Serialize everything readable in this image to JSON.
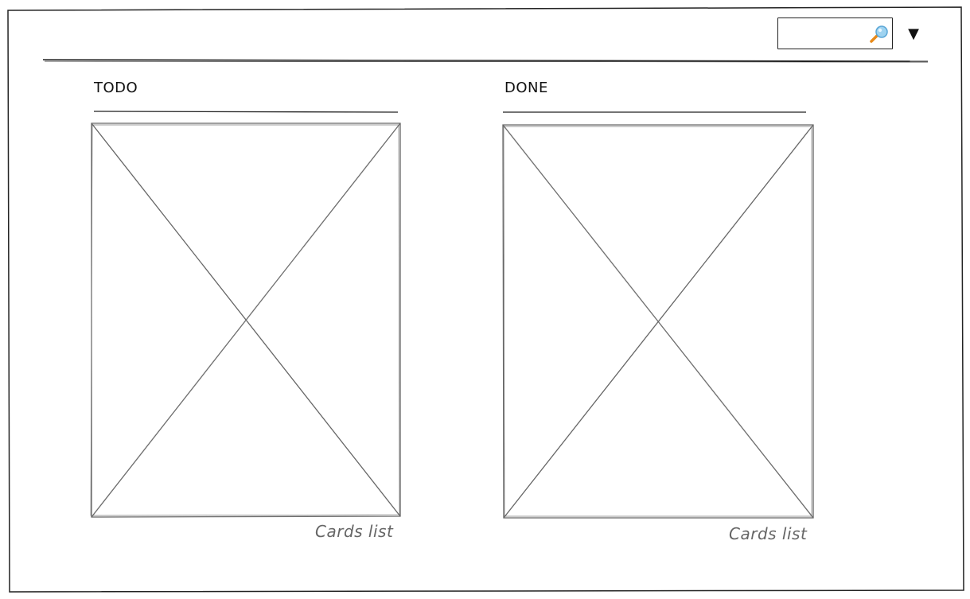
{
  "header": {
    "search": {
      "value": "",
      "placeholder": ""
    },
    "search_icon": "search-icon",
    "dropdown_icon": "triangle-down-icon",
    "dropdown_glyph": "▼"
  },
  "board": {
    "columns": [
      {
        "title": "TODO",
        "caption": "Cards list"
      },
      {
        "title": "DONE",
        "caption": "Cards list"
      }
    ]
  },
  "colors": {
    "stroke": "#222222",
    "placeholder_stroke": "#666666",
    "caption": "#666666",
    "search_glass": "#9fd3f0",
    "search_handle": "#e88a1a"
  }
}
